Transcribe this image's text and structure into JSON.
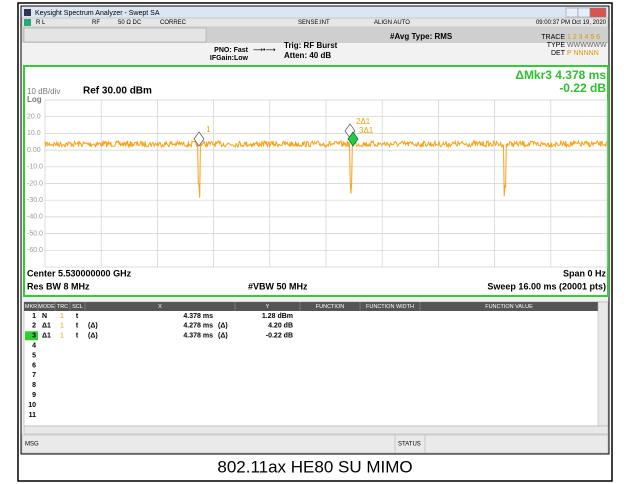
{
  "title_bar": "Keysight Spectrum Analyzer - Swept SA",
  "toolbar": [
    "R L",
    "RF",
    "50 Ω  DC",
    "CORREC",
    "SENSE:INT",
    "ALIGN AUTO",
    "09:00:37 PM Oct 19, 2020"
  ],
  "settings": {
    "pno": "PNO: Fast",
    "ifgain": "IFGain:Low",
    "trig": "Trig: RF Burst",
    "atten": "Atten: 40 dB",
    "avg": "#Avg Type: RMS",
    "trace_label": "TRACE",
    "trace_value": "1 2 3 4 5 6",
    "type_label": "TYPE",
    "type_value": "WWWWWW",
    "det_label": "DET",
    "det_value": "P NNNNN"
  },
  "marker_readout": {
    "delta": "ΔMkr3 4.378 ms",
    "value": "-0.22 dB"
  },
  "graph": {
    "scale": "10 dB/div",
    "log": "Log",
    "ref": "Ref 30.00 dBm",
    "y_labels": [
      "20.0",
      "10.0",
      "0.00",
      "-10.0",
      "-20.0",
      "-30.0",
      "-40.0",
      "-50.0",
      "-60.0"
    ],
    "markers": [
      "1",
      "2Δ1",
      "3Δ1"
    ]
  },
  "footer": {
    "center": "Center 5.530000000 GHz",
    "span": "Span 0 Hz",
    "rbw": "Res BW 8 MHz",
    "vbw": "#VBW 50 MHz",
    "sweep": "Sweep  16.00 ms (20001 pts)"
  },
  "marker_table": {
    "columns": [
      "MKR",
      "MODE",
      "TRC",
      "SCL",
      "X",
      "Y",
      "FUNCTION",
      "FUNCTION WIDTH",
      "FUNCTION VALUE"
    ],
    "rows": [
      {
        "mkr": "1",
        "mode": "N",
        "trc": "1",
        "scl": "t",
        "x": "4.378 ms",
        "y": "1.28 dBm"
      },
      {
        "mkr": "2",
        "mode": "Δ1",
        "trc": "1",
        "scl": "t",
        "ref": "(Δ)",
        "x": "4.278 ms",
        "x_ref": "(Δ)",
        "y": "4.20 dB"
      },
      {
        "mkr": "3",
        "mode": "Δ1",
        "trc": "1",
        "scl": "t",
        "ref": "(Δ)",
        "x": "4.378 ms",
        "x_ref": "(Δ)",
        "y": "-0.22 dB"
      },
      {
        "mkr": "4"
      },
      {
        "mkr": "5"
      },
      {
        "mkr": "6"
      },
      {
        "mkr": "7"
      },
      {
        "mkr": "8"
      },
      {
        "mkr": "9"
      },
      {
        "mkr": "10"
      },
      {
        "mkr": "11"
      }
    ]
  },
  "message_bar": {
    "msg": "MSG",
    "status": "STATUS"
  },
  "caption": "802.11ax HE80 SU MIMO"
}
